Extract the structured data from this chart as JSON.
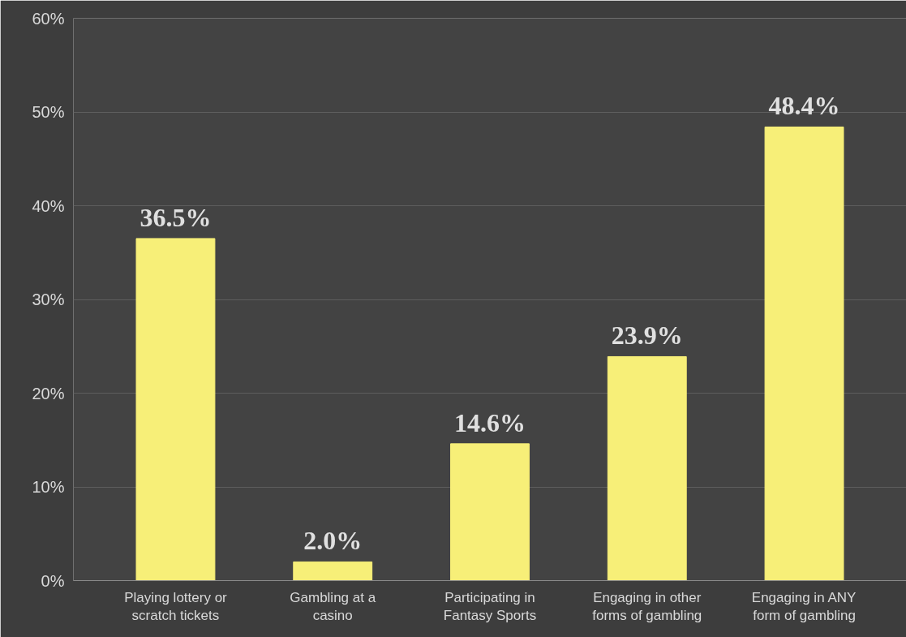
{
  "chart_data": {
    "type": "bar",
    "categories": [
      "Playing lottery or\nscratch tickets",
      "Gambling at a\ncasino",
      "Participating in\nFantasy Sports",
      "Engaging in other\nforms of gambling",
      "Engaging in ANY\nform of gambling"
    ],
    "values": [
      36.5,
      2.0,
      14.6,
      23.9,
      48.4
    ],
    "value_labels": [
      "36.5%",
      "2.0%",
      "14.6%",
      "23.9%",
      "48.4%"
    ],
    "color": "#f7ef78",
    "ylim": [
      0,
      60
    ],
    "yticks": [
      {
        "value": 0,
        "label": "0%"
      },
      {
        "value": 10,
        "label": "10%"
      },
      {
        "value": 20,
        "label": "20%"
      },
      {
        "value": 30,
        "label": "30%"
      },
      {
        "value": 40,
        "label": "40%"
      },
      {
        "value": 50,
        "label": "50%"
      },
      {
        "value": 60,
        "label": "60%"
      }
    ],
    "grid": "y"
  }
}
